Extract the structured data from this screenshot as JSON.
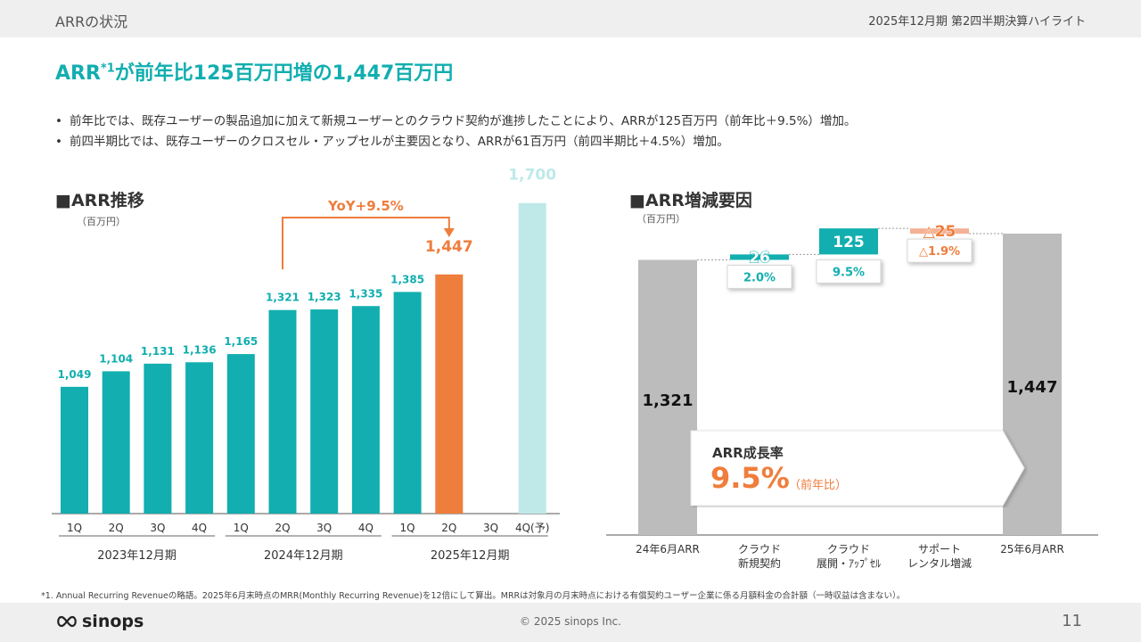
{
  "header": {
    "section": "ARRの状況",
    "context": "2025年12月期 第2四半期決算ハイライト"
  },
  "headline": {
    "pre": "ARR",
    "sup": "*1",
    "post": "が前年比125百万円増の1,447百万円"
  },
  "bullets": [
    "前年比では、既存ユーザーの製品追加に加えて新規ユーザーとのクラウド契約が進捗したことにより、ARRが125百万円（前年比＋9.5%）増加。",
    "前四半期比では、既存ユーザーのクロスセル・アップセルが主要因となり、ARRが61百万円（前四半期比＋4.5%）増加。"
  ],
  "left_panel": {
    "title": "■ARR推移",
    "unit": "（百万円）",
    "yoy_label": "YoY+9.5%"
  },
  "right_panel": {
    "title": "■ARR増減要因",
    "unit": "（百万円）",
    "growth_label": "ARR成長率",
    "growth_value": "9.5%",
    "growth_basis": "（前年比）"
  },
  "colors": {
    "teal": "#12aeb0",
    "orange": "#ef7d3c",
    "forecast": "#bfe9e9",
    "gray": "#bcbcbc",
    "salmon": "#f5b195"
  },
  "chart_data": [
    {
      "type": "bar",
      "categories": [
        "1Q",
        "2Q",
        "3Q",
        "4Q",
        "1Q",
        "2Q",
        "3Q",
        "4Q",
        "1Q",
        "2Q",
        "3Q",
        "4Q(予)"
      ],
      "groups": [
        {
          "label": "2023年12月期",
          "span": [
            0,
            3
          ]
        },
        {
          "label": "2024年12月期",
          "span": [
            4,
            7
          ]
        },
        {
          "label": "2025年12月期",
          "span": [
            8,
            11
          ]
        }
      ],
      "values": [
        1049,
        1104,
        1131,
        1136,
        1165,
        1321,
        1323,
        1335,
        1385,
        1447,
        null,
        1700
      ],
      "value_labels": [
        "1,049",
        "1,104",
        "1,131",
        "1,136",
        "1,165",
        "1,321",
        "1,323",
        "1,335",
        "1,385",
        "1,447",
        "",
        "1,700"
      ],
      "bar_roles": [
        "actual",
        "actual",
        "actual",
        "actual",
        "actual",
        "actual",
        "actual",
        "actual",
        "actual",
        "current",
        "none",
        "forecast"
      ],
      "ylim": [
        600,
        1800
      ],
      "annotation": {
        "from": 5,
        "to": 9,
        "label": "YoY+9.5%"
      }
    },
    {
      "type": "waterfall",
      "categories": [
        "24年6月ARR",
        "クラウド\n新規契約",
        "クラウド\n展開・ｱｯﾌﾟｾﾙ",
        "サポート\nレンタル増減",
        "25年6月ARR"
      ],
      "values": [
        1321,
        26,
        125,
        -25,
        1447
      ],
      "value_labels": [
        "1,321",
        "26",
        "125",
        "△25",
        "1,447"
      ],
      "kinds": [
        "total",
        "increase",
        "increase",
        "decrease",
        "total"
      ],
      "rate_labels": [
        "",
        "2.0%",
        "9.5%",
        "△1.9%",
        ""
      ],
      "ylim": [
        0,
        1447
      ]
    }
  ],
  "footnote": "*1. Annual Recurring Revenueの略語。2025年6月末時点のMRR(Monthly Recurring Revenue)を12倍にして算出。MRRは対象月の月末時点における有償契約ユーザー企業に係る月額料金の合計額（一時収益は含まない）。",
  "footer": {
    "brand": "sinops",
    "copyright": "© 2025 sinops Inc.",
    "page": "11"
  }
}
